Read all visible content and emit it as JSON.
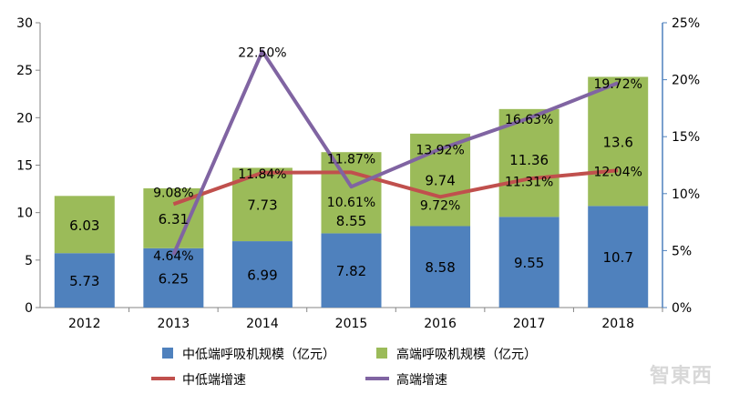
{
  "chart_data": {
    "type": "bar+line",
    "categories": [
      "2012",
      "2013",
      "2014",
      "2015",
      "2016",
      "2017",
      "2018"
    ],
    "bar_series": [
      {
        "name": "中低端呼吸机规模（亿元）",
        "color": "#4f81bd",
        "values": [
          5.73,
          6.25,
          6.99,
          7.82,
          8.58,
          9.55,
          10.7
        ]
      },
      {
        "name": "高端呼吸机规模（亿元）",
        "color": "#9bbb59",
        "values": [
          6.03,
          6.31,
          7.73,
          8.55,
          9.74,
          11.36,
          13.6
        ]
      }
    ],
    "line_series": [
      {
        "name": "中低端增速",
        "color": "#c0504d",
        "values": [
          null,
          9.08,
          11.84,
          11.87,
          9.72,
          11.31,
          12.04
        ],
        "labels": [
          "",
          "9.08%",
          "11.84%",
          "11.87%",
          "9.72%",
          "11.31%",
          "12.04%"
        ]
      },
      {
        "name": "高端增速",
        "color": "#8064a2",
        "values": [
          null,
          4.64,
          22.5,
          10.61,
          13.92,
          16.63,
          19.72
        ],
        "labels": [
          "",
          "4.64%",
          "22.50%",
          "10.61%",
          "13.92%",
          "16.63%",
          "19.72%"
        ]
      }
    ],
    "y_left": {
      "ylim": [
        0,
        30
      ],
      "ticks": [
        "0",
        "5",
        "10",
        "15",
        "20",
        "25",
        "30"
      ]
    },
    "y_right": {
      "ylim": [
        0,
        25
      ],
      "ticks": [
        "0%",
        "5%",
        "10%",
        "15%",
        "20%",
        "25%"
      ]
    },
    "legend_position": "bottom",
    "grid": false
  },
  "watermark": "智东西"
}
